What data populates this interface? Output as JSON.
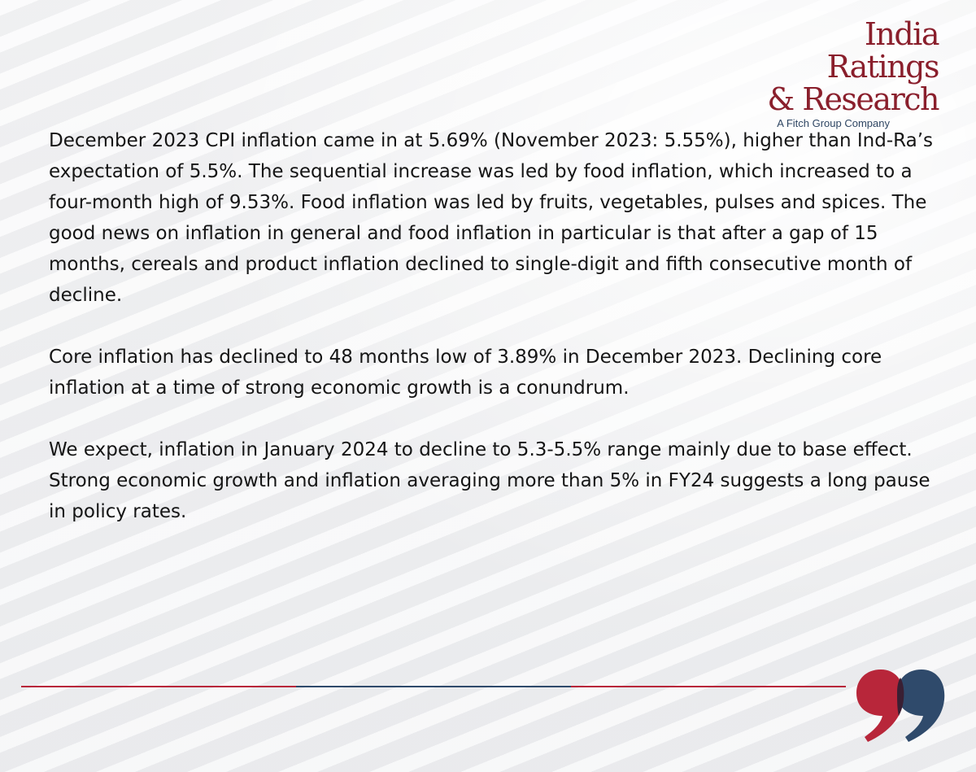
{
  "logo": {
    "line1": "India Ratings",
    "line2": "& Research",
    "tagline": "A Fitch Group Company"
  },
  "paragraphs": [
    "December 2023 CPI inflation came in at 5.69% (November 2023: 5.55%), higher than Ind-Ra’s expectation of 5.5%. The sequential increase was led by food inflation, which increased to a four-month high of 9.53%. Food inflation was led by fruits, vegetables, pulses and spices. The good news on inflation in general and food inflation in particular is that after a gap of 15 months, cereals and product inflation declined to single-digit and fifth consecutive month of decline.",
    "Core inflation has declined to 48 months low of 3.89% in December 2023. Declining core inflation at a time of strong economic growth is a conundrum.",
    "We expect, inflation in January 2024 to decline to 5.3-5.5% range mainly due to base effect. Strong economic growth and inflation averaging more than 5% in FY24 suggests a long pause in policy rates."
  ],
  "colors": {
    "brand_red": "#b8263a",
    "brand_navy": "#2f4a6b",
    "overlap": "#3a1f33"
  },
  "icons": {
    "quote": "quote-mark-icon"
  }
}
